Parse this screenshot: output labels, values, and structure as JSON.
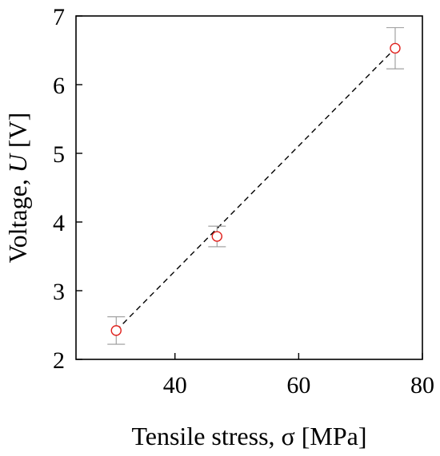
{
  "chart_data": {
    "type": "scatter",
    "title": "",
    "xlabel": "Tensile stress, σ [MPa]",
    "ylabel_prefix": "Voltage,  ",
    "ylabel_var": "U",
    "ylabel_unit": " [V]",
    "xlim": [
      24,
      80
    ],
    "ylim": [
      2,
      7
    ],
    "x_ticks": [
      40,
      60,
      80
    ],
    "y_ticks": [
      2,
      3,
      4,
      5,
      6,
      7
    ],
    "grid": false,
    "legend": "none",
    "series": [
      {
        "points": [
          {
            "x": 30.5,
            "y": 2.42,
            "err": 0.2
          },
          {
            "x": 46.8,
            "y": 3.79,
            "err": 0.15
          },
          {
            "x": 75.6,
            "y": 6.53,
            "err": 0.3
          }
        ],
        "marker": "open-circle",
        "marker_color": "#e0201c",
        "errorbar_color": "#999999"
      }
    ],
    "fit_line": {
      "style": "dashed",
      "color": "#000000",
      "from": {
        "x": 30.5,
        "y": 2.42
      },
      "to": {
        "x": 75.6,
        "y": 6.53
      }
    }
  }
}
